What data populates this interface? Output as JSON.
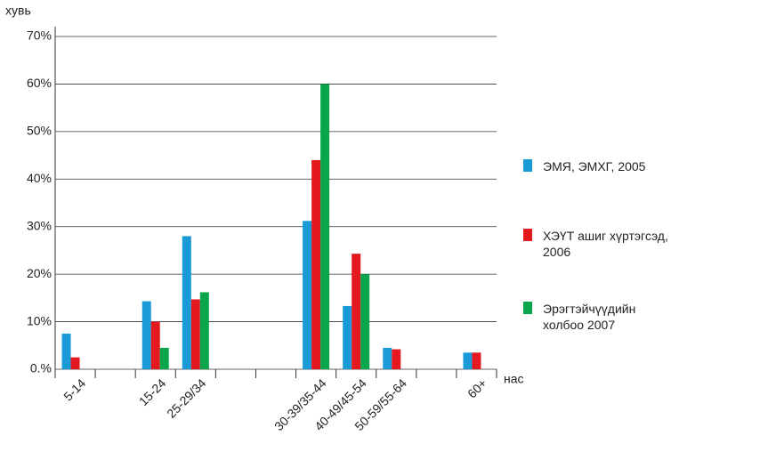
{
  "chart_data": {
    "type": "bar",
    "y_label": "хувь",
    "x_label": "нас",
    "categories": [
      "5-14",
      null,
      "15-24",
      "25-29/34",
      null,
      null,
      "30-39/35-44",
      "40-49/45-54",
      "50-59/55-64",
      null,
      "60+"
    ],
    "series": [
      {
        "name": "ЭМЯ, ЭМХГ, 2005",
        "color": "#1a9ad6",
        "values": [
          7.5,
          null,
          14.3,
          28,
          null,
          null,
          31.2,
          13.3,
          4.5,
          null,
          3.5
        ]
      },
      {
        "name": "ХЭҮТ ашиг хүртэгсэд, 2006",
        "color": "#e3191f",
        "values": [
          2.5,
          null,
          10,
          14.7,
          null,
          null,
          44,
          24.3,
          4.2,
          null,
          3.5
        ]
      },
      {
        "name": "Эрэгтэйчүүдийн холбоо 2007",
        "color": "#0aa64b",
        "values": [
          null,
          null,
          4.5,
          16.2,
          null,
          null,
          60,
          20,
          null,
          null,
          null
        ]
      }
    ],
    "ylim": [
      0,
      70
    ],
    "yticks": [
      {
        "value": 0,
        "label": "0.%"
      },
      {
        "value": 10,
        "label": "10%"
      },
      {
        "value": 20,
        "label": "20%"
      },
      {
        "value": 30,
        "label": "30%"
      },
      {
        "value": 40,
        "label": "40%"
      },
      {
        "value": 50,
        "label": "50%"
      },
      {
        "value": 60,
        "label": "60%"
      },
      {
        "value": 70,
        "label": "70%"
      }
    ],
    "grid": true,
    "legend": "right"
  }
}
